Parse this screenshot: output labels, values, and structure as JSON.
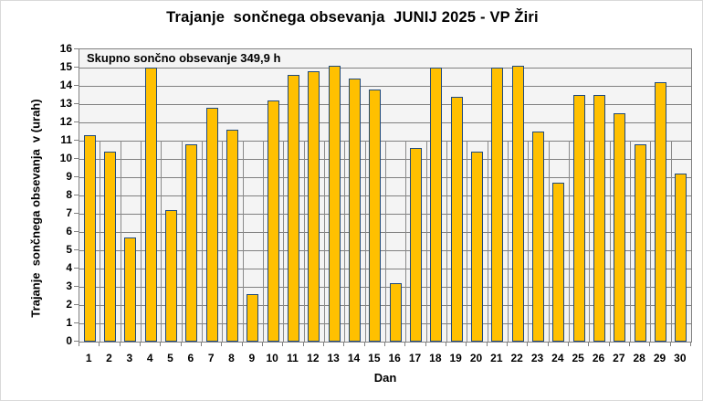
{
  "chart": {
    "title": "Trajanje  sončnega obsevanja  JUNIJ 2025 - VP Žiri",
    "annotation": "Skupno sončno obsevanje 349,9 h",
    "x_axis_title": "Dan",
    "y_axis_title": "Trajanje  sončnega obsevanja  v (urah)"
  },
  "chart_data": {
    "type": "bar",
    "title": "Trajanje sončnega obsevanja JUNIJ 2025 - VP Žiri",
    "annotation": "Skupno sončno obsevanje 349,9 h",
    "total_hours_label": "349,9 h",
    "xlabel": "Dan",
    "ylabel": "Trajanje sončnega obsevanja v (urah)",
    "categories": [
      1,
      2,
      3,
      4,
      5,
      6,
      7,
      8,
      9,
      10,
      11,
      12,
      13,
      14,
      15,
      16,
      17,
      18,
      19,
      20,
      21,
      22,
      23,
      24,
      25,
      26,
      27,
      28,
      29,
      30
    ],
    "values": [
      11.3,
      10.4,
      5.7,
      15.0,
      7.2,
      10.8,
      12.8,
      11.6,
      2.6,
      13.2,
      14.6,
      14.8,
      15.1,
      14.4,
      13.8,
      3.2,
      10.6,
      15.0,
      13.4,
      10.4,
      15.0,
      15.1,
      11.5,
      8.7,
      13.5,
      13.5,
      12.5,
      10.8,
      14.2,
      9.2
    ],
    "ylim": [
      0,
      16
    ],
    "ytick_step": 1,
    "grid": "on",
    "legend": "none",
    "colors": {
      "bar_fill": "#FFC000",
      "bar_border": "#1F497D",
      "plot_background": "#F4F4F4",
      "page_background": "#FFFFFF",
      "gridline": "#808080",
      "text": "#000000"
    }
  }
}
